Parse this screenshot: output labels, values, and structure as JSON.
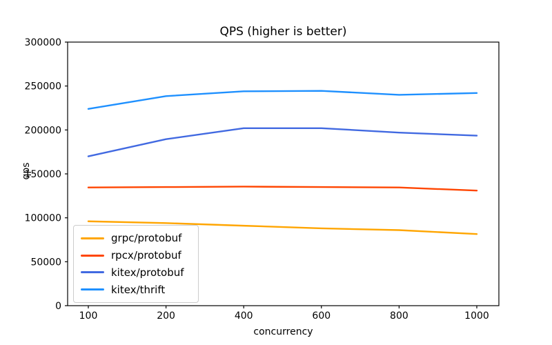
{
  "title": "QPS (higher is better)",
  "xlabel": "concurrency",
  "ylabel": "qps",
  "chart_data": {
    "type": "line",
    "title": "QPS (higher is better)",
    "xlabel": "concurrency",
    "ylabel": "qps",
    "x": [
      100,
      200,
      400,
      600,
      800,
      1000
    ],
    "x_tick_labels": [
      "100",
      "200",
      "400",
      "600",
      "800",
      "1000"
    ],
    "x_spacing": "even",
    "yticks": [
      0,
      50000,
      100000,
      150000,
      200000,
      250000,
      300000
    ],
    "ytick_labels": [
      "0",
      "50000",
      "100000",
      "150000",
      "200000",
      "250000",
      "300000"
    ],
    "ylim": [
      0,
      300000
    ],
    "grid": false,
    "legend_position": "lower left",
    "axis_color": "#000000",
    "series": [
      {
        "name": "grpc/protobuf",
        "color": "#FFA500",
        "values": [
          96000,
          94000,
          91000,
          88000,
          86000,
          81500
        ]
      },
      {
        "name": "rpcx/protobuf",
        "color": "#FF4500",
        "values": [
          134500,
          135000,
          135500,
          135000,
          134500,
          131000
        ]
      },
      {
        "name": "kitex/protobuf",
        "color": "#4169E1",
        "values": [
          170000,
          189500,
          202000,
          202000,
          197000,
          193500
        ]
      },
      {
        "name": "kitex/thrift",
        "color": "#1E90FF",
        "values": [
          224000,
          238500,
          244000,
          244500,
          240000,
          242000
        ]
      }
    ]
  }
}
